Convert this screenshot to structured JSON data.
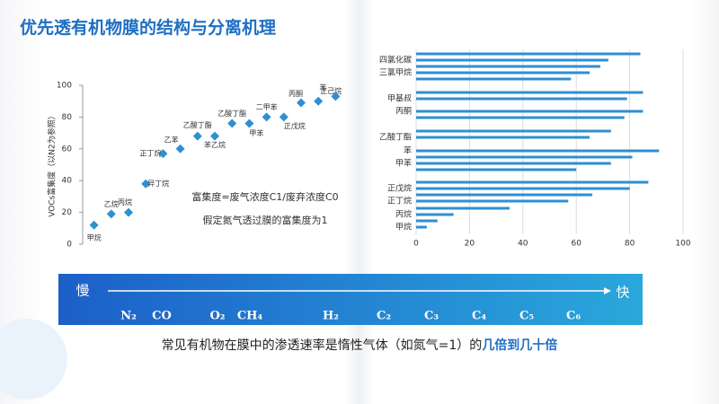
{
  "title": "优先透有机物膜的结构与分离机理",
  "banner": {
    "slow": "慢",
    "fast": "快",
    "gases": [
      "N₂",
      "CO",
      "O₂",
      "CH₄",
      "H₂",
      "C₂",
      "C₃",
      "C₄",
      "C₅",
      "C₆"
    ]
  },
  "caption": {
    "text": "常见有机物在膜中的渗透速率是惰性气体（如氮气=1）的",
    "highlight": "几倍到几十倍"
  },
  "chart_data": [
    {
      "type": "scatter",
      "ylabel": "VOCs富集度（以N2为参照）",
      "categories": [
        "甲烷",
        "乙烷",
        "丙烷",
        "异丁烷",
        "正丁烷",
        "乙苯",
        "乙酸丁酯",
        "苯乙烷",
        "乙酸丁酯",
        "甲苯",
        "二甲苯",
        "正戊烷",
        "丙酮",
        "正己烷",
        "苯"
      ],
      "values": [
        12,
        19,
        20,
        38,
        57,
        60,
        68,
        68,
        76,
        76,
        80,
        80,
        89,
        90,
        93
      ],
      "color": "#2e8fd1",
      "ylim": [
        0,
        100
      ],
      "yticks": [
        0,
        20,
        40,
        60,
        80,
        100
      ],
      "annotations": [
        "富集度=废气浓度C1/废弃浓度C0",
        "假定氮气透过膜的富集度为1"
      ]
    },
    {
      "type": "hbar",
      "categories": [
        null,
        "四氯化碳",
        null,
        "三氯甲烷",
        null,
        null,
        "甲基叔",
        "丙酮",
        null,
        null,
        "乙酸丁酯",
        "苯",
        null,
        "甲苯",
        null,
        null,
        "正戊烷",
        null,
        "正丁烷",
        null,
        "丙烷",
        null,
        "甲烷"
      ],
      "values": [
        84,
        72,
        69,
        65,
        58,
        85,
        79,
        85,
        78,
        73,
        65,
        91,
        81,
        73,
        60,
        87,
        80,
        66,
        57,
        35,
        14,
        8,
        4
      ],
      "color": "#2e8fd1",
      "xlim": [
        0,
        100
      ],
      "xticks": [
        0,
        20,
        40,
        60,
        80,
        100
      ],
      "grid": true
    }
  ]
}
